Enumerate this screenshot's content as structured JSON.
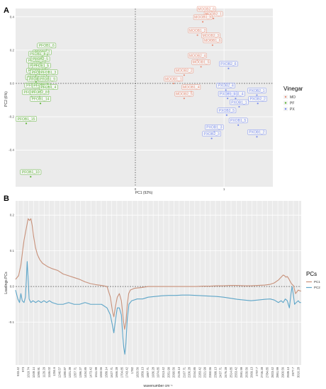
{
  "panel_a": {
    "letter": "A",
    "xlabel": "PC1 (92%)",
    "ylabel": "PC2 (6%)",
    "legend": {
      "title": "Vinegar",
      "entries": [
        {
          "key": "MO",
          "color": "#e8907a"
        },
        {
          "key": "PF",
          "color": "#62b53b"
        },
        {
          "key": "PX",
          "color": "#7a8ef0"
        }
      ]
    },
    "x_ticks": [
      {
        "v": 0,
        "label": "0"
      },
      {
        "v": 1,
        "label": "1"
      }
    ],
    "y_ticks": [
      {
        "v": 0.4,
        "label": "0.4"
      },
      {
        "v": 0.2,
        "label": "0.2"
      },
      {
        "v": 0.0,
        "label": "0.0"
      },
      {
        "v": -0.2,
        "label": "-0.2"
      },
      {
        "v": -0.4,
        "label": "-0.4"
      }
    ]
  },
  "panel_b": {
    "letter": "B",
    "xlabel": "wavenumber cm⁻¹",
    "ylabel": "Loadings PCs",
    "legend": {
      "title": "PCs",
      "entries": [
        {
          "key": "PC1",
          "color": "#c8917a"
        },
        {
          "key": "PC2",
          "color": "#5da5c8"
        }
      ]
    },
    "y_ticks": [
      {
        "v": 0.2,
        "label": "0.2"
      },
      {
        "v": 0.1,
        "label": "0.1"
      },
      {
        "v": 0.0,
        "label": "0.0"
      },
      {
        "v": -0.1,
        "label": "-0.1"
      }
    ],
    "x_tick_labels": [
      "933.42",
      "973",
      "1019.74",
      "1049.14",
      "1095.91",
      "1129.29",
      "1166.02",
      "1204.6",
      "1246.57",
      "1280.87",
      "1321.39",
      "1357.71",
      "1396.27",
      "1434.85",
      "1473.42",
      "1511.99",
      "1550.56",
      "1589.14",
      "1627.71",
      "1666.28",
      "1704.85",
      "1743.42",
      "1782",
      "1820.56",
      "1859.13",
      "1897.71",
      "1936.28",
      "1974.85",
      "2013.42",
      "2051.99",
      "2090.56",
      "2129.13",
      "2167.71",
      "2206.28",
      "2244.85",
      "2283.42",
      "2321.99",
      "2360.56",
      "2399.13",
      "2437.71",
      "2476.28",
      "2514.85",
      "2553.42",
      "2591.99",
      "2630.56",
      "2669.13",
      "2707.7",
      "2746.28",
      "2784.85",
      "2823.42",
      "2861.99",
      "2900.56",
      "2939.13",
      "2977.7",
      "3016.28"
    ]
  },
  "chart_data": [
    {
      "type": "scatter",
      "panel": "A",
      "xlabel": "PC1 (92%)",
      "ylabel": "PC2 (6%)",
      "xlim": [
        -1.35,
        1.55
      ],
      "ylim": [
        -0.62,
        0.45
      ],
      "legend_title": "Vinegar",
      "series": [
        {
          "name": "MO",
          "color": "#e8907a",
          "points": [
            {
              "label": "MOOB2_6",
              "x": 0.8,
              "y": 0.42
            },
            {
              "label": "MOOB2_1",
              "x": 0.88,
              "y": 0.39
            },
            {
              "label": "MOOB1_3",
              "x": 0.76,
              "y": 0.37
            },
            {
              "label": "MOOB1_2",
              "x": 0.7,
              "y": 0.29
            },
            {
              "label": "MOOB2_3",
              "x": 0.85,
              "y": 0.26
            },
            {
              "label": "MOOB1_6",
              "x": 0.87,
              "y": 0.23
            },
            {
              "label": "MOOB2_4",
              "x": 0.7,
              "y": 0.14
            },
            {
              "label": "MOOB1_5",
              "x": 0.74,
              "y": 0.1
            },
            {
              "label": "MOOB2_2",
              "x": 0.55,
              "y": 0.05
            },
            {
              "label": "MOOB1_1",
              "x": 0.43,
              "y": 0.0
            },
            {
              "label": "MOOB1_4",
              "x": 0.63,
              "y": -0.05
            },
            {
              "label": "MOOB2_5",
              "x": 0.55,
              "y": -0.09
            }
          ]
        },
        {
          "name": "PF",
          "color": "#62b53b",
          "points": [
            {
              "label": "PFOB1_6",
              "x": -1.0,
              "y": 0.2
            },
            {
              "label": "PFOB1_2",
              "x": -1.05,
              "y": 0.16
            },
            {
              "label": "PFOB1_8",
              "x": -1.1,
              "y": 0.15
            },
            {
              "label": "PFOB2_3",
              "x": -1.12,
              "y": 0.11
            },
            {
              "label": "PFOB2_5",
              "x": -1.07,
              "y": 0.12
            },
            {
              "label": "PFOB2_1",
              "x": -1.1,
              "y": 0.08
            },
            {
              "label": "PFOB1_5",
              "x": -1.06,
              "y": 0.08
            },
            {
              "label": "PFOB2_6",
              "x": -1.12,
              "y": 0.05
            },
            {
              "label": "PFOB1_7",
              "x": -1.08,
              "y": 0.04
            },
            {
              "label": "PFOB1_3",
              "x": -0.98,
              "y": 0.04
            },
            {
              "label": "PFOB1_13",
              "x": -1.12,
              "y": 0.01
            },
            {
              "label": "PFOB1_11",
              "x": -1.1,
              "y": 0.0
            },
            {
              "label": "PFOB1_9",
              "x": -0.99,
              "y": 0.0
            },
            {
              "label": "PFOB1_12",
              "x": -1.13,
              "y": -0.04
            },
            {
              "label": "PFOB1_1",
              "x": -1.06,
              "y": -0.04
            },
            {
              "label": "PFOB1_4",
              "x": -0.98,
              "y": -0.05
            },
            {
              "label": "PFOB2_4",
              "x": -1.17,
              "y": -0.08
            },
            {
              "label": "PFOB2_8",
              "x": -1.08,
              "y": -0.08
            },
            {
              "label": "PFOB1_14",
              "x": -1.07,
              "y": -0.12
            },
            {
              "label": "PFOB1_15",
              "x": -1.23,
              "y": -0.24
            },
            {
              "label": "PFOB1_10",
              "x": -1.18,
              "y": -0.56
            }
          ]
        },
        {
          "name": "PX",
          "color": "#7a8ef0",
          "points": [
            {
              "label": "PXOB2_6",
              "x": 1.05,
              "y": 0.09
            },
            {
              "label": "PXOB2_4",
              "x": 1.02,
              "y": -0.04
            },
            {
              "label": "PXOB2_1",
              "x": 1.37,
              "y": -0.07
            },
            {
              "label": "PXOB1_4",
              "x": 1.13,
              "y": -0.09
            },
            {
              "label": "PXOB1_6",
              "x": 1.04,
              "y": -0.09
            },
            {
              "label": "PXOB2_2",
              "x": 1.38,
              "y": -0.12
            },
            {
              "label": "PXOB1_1",
              "x": 1.17,
              "y": -0.14
            },
            {
              "label": "PXOB2_5",
              "x": 1.03,
              "y": -0.19
            },
            {
              "label": "PXOB1_5",
              "x": 1.16,
              "y": -0.25
            },
            {
              "label": "PXOB1_3",
              "x": 0.89,
              "y": -0.29
            },
            {
              "label": "PXOB1_2",
              "x": 1.37,
              "y": -0.32
            },
            {
              "label": "PXOB2_3",
              "x": 0.86,
              "y": -0.33
            }
          ]
        }
      ]
    },
    {
      "type": "line",
      "panel": "B",
      "xlabel": "wavenumber cm⁻¹",
      "ylabel": "Loadings PCs",
      "xlim": [
        933.42,
        3016.28
      ],
      "ylim": [
        -0.22,
        0.24
      ],
      "legend_title": "PCs",
      "series": [
        {
          "name": "PC1",
          "color": "#c8917a",
          "points": [
            [
              933,
              0.02
            ],
            [
              955,
              0.03
            ],
            [
              972,
              0.06
            ],
            [
              985,
              0.1
            ],
            [
              995,
              0.13
            ],
            [
              1005,
              0.15
            ],
            [
              1015,
              0.17
            ],
            [
              1025,
              0.19
            ],
            [
              1035,
              0.185
            ],
            [
              1045,
              0.19
            ],
            [
              1055,
              0.17
            ],
            [
              1065,
              0.14
            ],
            [
              1078,
              0.11
            ],
            [
              1092,
              0.09
            ],
            [
              1110,
              0.075
            ],
            [
              1130,
              0.065
            ],
            [
              1150,
              0.06
            ],
            [
              1170,
              0.055
            ],
            [
              1200,
              0.05
            ],
            [
              1240,
              0.045
            ],
            [
              1280,
              0.035
            ],
            [
              1320,
              0.03
            ],
            [
              1360,
              0.025
            ],
            [
              1400,
              0.02
            ],
            [
              1440,
              0.013
            ],
            [
              1480,
              0.008
            ],
            [
              1520,
              0.005
            ],
            [
              1560,
              0.003
            ],
            [
              1600,
              0.0
            ],
            [
              1625,
              -0.03
            ],
            [
              1640,
              -0.07
            ],
            [
              1650,
              -0.085
            ],
            [
              1660,
              -0.06
            ],
            [
              1675,
              -0.03
            ],
            [
              1690,
              -0.02
            ],
            [
              1705,
              -0.04
            ],
            [
              1718,
              -0.09
            ],
            [
              1728,
              -0.12
            ],
            [
              1738,
              -0.1
            ],
            [
              1748,
              -0.05
            ],
            [
              1758,
              -0.02
            ],
            [
              1770,
              -0.01
            ],
            [
              1800,
              -0.005
            ],
            [
              1850,
              -0.003
            ],
            [
              1900,
              0.0
            ],
            [
              1950,
              0.0
            ],
            [
              2000,
              0.0
            ],
            [
              2050,
              0.0
            ],
            [
              2100,
              0.0
            ],
            [
              2150,
              0.0
            ],
            [
              2200,
              0.0
            ],
            [
              2250,
              0.0
            ],
            [
              2300,
              0.001
            ],
            [
              2350,
              0.001
            ],
            [
              2400,
              0.002
            ],
            [
              2450,
              0.002
            ],
            [
              2500,
              0.003
            ],
            [
              2550,
              0.003
            ],
            [
              2600,
              0.002
            ],
            [
              2650,
              0.002
            ],
            [
              2700,
              0.003
            ],
            [
              2750,
              0.004
            ],
            [
              2790,
              0.006
            ],
            [
              2820,
              0.01
            ],
            [
              2850,
              0.018
            ],
            [
              2870,
              0.026
            ],
            [
              2885,
              0.032
            ],
            [
              2895,
              0.03
            ],
            [
              2905,
              0.026
            ],
            [
              2915,
              0.028
            ],
            [
              2925,
              0.022
            ],
            [
              2935,
              0.015
            ],
            [
              2945,
              0.008
            ],
            [
              2960,
              0.002
            ],
            [
              2975,
              -0.02
            ],
            [
              2985,
              -0.015
            ],
            [
              2995,
              -0.01
            ],
            [
              3005,
              -0.012
            ],
            [
              3016,
              -0.013
            ]
          ]
        },
        {
          "name": "PC2",
          "color": "#5da5c8",
          "points": [
            [
              933,
              -0.01
            ],
            [
              950,
              -0.035
            ],
            [
              962,
              -0.045
            ],
            [
              972,
              -0.02
            ],
            [
              982,
              -0.04
            ],
            [
              995,
              -0.045
            ],
            [
              1005,
              -0.03
            ],
            [
              1012,
              0.02
            ],
            [
              1018,
              0.07
            ],
            [
              1024,
              0.03
            ],
            [
              1032,
              -0.035
            ],
            [
              1045,
              -0.045
            ],
            [
              1060,
              -0.04
            ],
            [
              1080,
              -0.045
            ],
            [
              1100,
              -0.04
            ],
            [
              1120,
              -0.045
            ],
            [
              1140,
              -0.04
            ],
            [
              1160,
              -0.045
            ],
            [
              1180,
              -0.04
            ],
            [
              1200,
              -0.045
            ],
            [
              1240,
              -0.05
            ],
            [
              1280,
              -0.05
            ],
            [
              1320,
              -0.045
            ],
            [
              1360,
              -0.05
            ],
            [
              1400,
              -0.05
            ],
            [
              1440,
              -0.045
            ],
            [
              1480,
              -0.05
            ],
            [
              1520,
              -0.05
            ],
            [
              1560,
              -0.05
            ],
            [
              1600,
              -0.06
            ],
            [
              1625,
              -0.08
            ],
            [
              1640,
              -0.11
            ],
            [
              1650,
              -0.13
            ],
            [
              1660,
              -0.1
            ],
            [
              1675,
              -0.06
            ],
            [
              1690,
              -0.06
            ],
            [
              1705,
              -0.08
            ],
            [
              1715,
              -0.14
            ],
            [
              1722,
              -0.17
            ],
            [
              1730,
              -0.19
            ],
            [
              1738,
              -0.16
            ],
            [
              1748,
              -0.09
            ],
            [
              1760,
              -0.05
            ],
            [
              1780,
              -0.04
            ],
            [
              1820,
              -0.035
            ],
            [
              1860,
              -0.035
            ],
            [
              1900,
              -0.03
            ],
            [
              1950,
              -0.028
            ],
            [
              2000,
              -0.026
            ],
            [
              2050,
              -0.025
            ],
            [
              2100,
              -0.025
            ],
            [
              2150,
              -0.024
            ],
            [
              2200,
              -0.024
            ],
            [
              2250,
              -0.025
            ],
            [
              2300,
              -0.026
            ],
            [
              2350,
              -0.027
            ],
            [
              2400,
              -0.028
            ],
            [
              2450,
              -0.03
            ],
            [
              2500,
              -0.033
            ],
            [
              2550,
              -0.036
            ],
            [
              2600,
              -0.038
            ],
            [
              2650,
              -0.04
            ],
            [
              2700,
              -0.038
            ],
            [
              2750,
              -0.036
            ],
            [
              2790,
              -0.035
            ],
            [
              2820,
              -0.038
            ],
            [
              2850,
              -0.045
            ],
            [
              2870,
              -0.04
            ],
            [
              2885,
              -0.045
            ],
            [
              2900,
              -0.035
            ],
            [
              2915,
              -0.04
            ],
            [
              2930,
              -0.06
            ],
            [
              2942,
              -0.02
            ],
            [
              2950,
              0.0
            ],
            [
              2958,
              -0.02
            ],
            [
              2968,
              -0.05
            ],
            [
              2980,
              -0.045
            ],
            [
              2995,
              -0.04
            ],
            [
              3005,
              -0.045
            ],
            [
              3016,
              -0.045
            ]
          ]
        }
      ]
    }
  ]
}
